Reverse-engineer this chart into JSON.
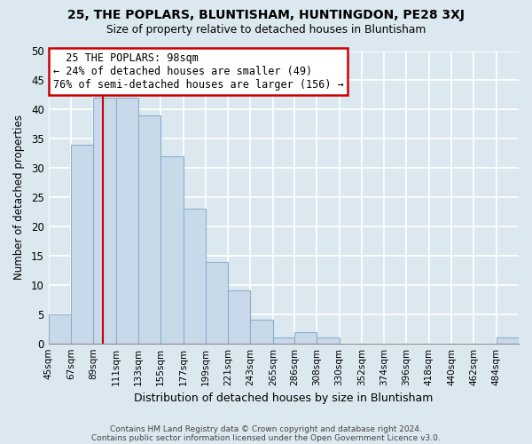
{
  "title1": "25, THE POPLARS, BLUNTISHAM, HUNTINGDON, PE28 3XJ",
  "title2": "Size of property relative to detached houses in Bluntisham",
  "xlabel": "Distribution of detached houses by size in Bluntisham",
  "ylabel": "Number of detached properties",
  "footer1": "Contains HM Land Registry data © Crown copyright and database right 2024.",
  "footer2": "Contains public sector information licensed under the Open Government Licence v3.0.",
  "bin_edges": [
    45,
    67,
    89,
    111,
    133,
    155,
    177,
    199,
    221,
    243,
    265,
    286,
    308,
    330,
    352,
    374,
    396,
    418,
    440,
    462,
    484,
    506
  ],
  "bin_labels": [
    "45sqm",
    "67sqm",
    "89sqm",
    "111sqm",
    "133sqm",
    "155sqm",
    "177sqm",
    "199sqm",
    "221sqm",
    "243sqm",
    "265sqm",
    "286sqm",
    "308sqm",
    "330sqm",
    "352sqm",
    "374sqm",
    "396sqm",
    "418sqm",
    "440sqm",
    "462sqm",
    "484sqm"
  ],
  "counts": [
    5,
    34,
    42,
    42,
    39,
    32,
    23,
    14,
    9,
    4,
    1,
    2,
    1,
    0,
    0,
    0,
    0,
    0,
    0,
    0,
    1
  ],
  "bar_color": "#c8d9ea",
  "bar_edge_color": "#8ab0cc",
  "property_size": 98,
  "vline_color": "#cc0000",
  "ylim": [
    0,
    50
  ],
  "annotation_title": "25 THE POPLARS: 98sqm",
  "annotation_line1": "← 24% of detached houses are smaller (49)",
  "annotation_line2": "76% of semi-detached houses are larger (156) →",
  "annotation_box_color": "#ffffff",
  "annotation_border_color": "#cc0000",
  "background_color": "#dce8f0",
  "grid_color": "#ffffff",
  "plot_bg_color": "#dce8f0"
}
